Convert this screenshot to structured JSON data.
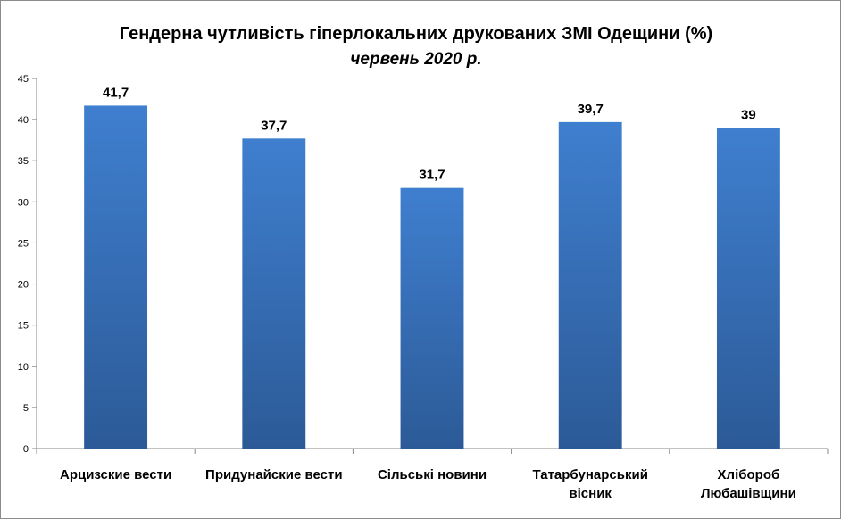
{
  "chart_data": {
    "type": "bar",
    "title": "Гендерна чутливість гіперлокальних друкованих ЗМІ Одещини (%)",
    "subtitle": "червень 2020 р.",
    "categories": [
      [
        "Арцизские вести"
      ],
      [
        "Придунайские вести"
      ],
      [
        "Сільські новини"
      ],
      [
        "Татарбунарський",
        "вісник"
      ],
      [
        "Хлібороб",
        "Любашівщини"
      ]
    ],
    "values": [
      41.7,
      37.7,
      31.7,
      39.7,
      39
    ],
    "value_labels": [
      "41,7",
      "37,7",
      "31,7",
      "39,7",
      "39"
    ],
    "ylim": [
      0,
      45
    ],
    "yticks": [
      0,
      5,
      10,
      15,
      20,
      25,
      30,
      35,
      40,
      45
    ],
    "grid": false,
    "legend": "none",
    "colors": {
      "bar_top": "#3f7fcf",
      "bar_bottom": "#2c5a97",
      "axis": "#868686"
    }
  }
}
